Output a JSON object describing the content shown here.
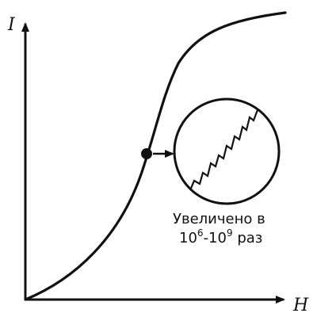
{
  "axes": {
    "y_label": "I",
    "x_label": "H"
  },
  "caption": {
    "line1": "Увеличено в",
    "line2_base1": "10",
    "line2_exp1": "6",
    "line2_dash": "-",
    "line2_base2": "10",
    "line2_exp2": "9",
    "line2_tail": " раз"
  },
  "colors": {
    "ink": "#111111",
    "background": "#ffffff"
  }
}
